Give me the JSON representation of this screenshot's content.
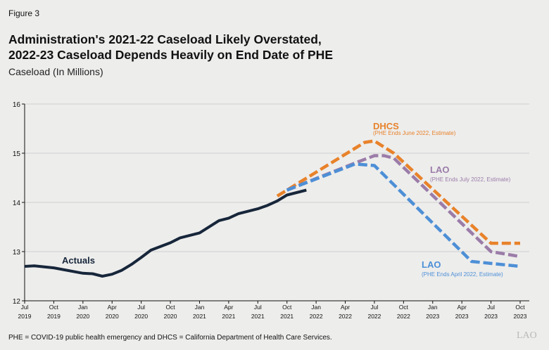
{
  "figure_label": "Figure 3",
  "title_line1": "Administration's 2021-22 Caseload Likely Overstated,",
  "title_line2": "2022-23 Caseload Depends Heavily on End Date of PHE",
  "subtitle": "Caseload (In Millions)",
  "footnote": "PHE = COVID-19 public health emergency and DHCS = California Department of Health Care Services.",
  "logo_text": "LAO",
  "chart_data": {
    "type": "line",
    "ylim": [
      12,
      16
    ],
    "yticks": [
      "12",
      "13",
      "14",
      "15",
      "16"
    ],
    "xlim": [
      "2019-07",
      "2023-10"
    ],
    "xticks": [
      [
        "Jul",
        "2019"
      ],
      [
        "Oct",
        "2019"
      ],
      [
        "Jan",
        "2020"
      ],
      [
        "Apr",
        "2020"
      ],
      [
        "Jul",
        "2020"
      ],
      [
        "Oct",
        "2020"
      ],
      [
        "Jan",
        "2021"
      ],
      [
        "Apr",
        "2021"
      ],
      [
        "Jul",
        "2021"
      ],
      [
        "Oct",
        "2021"
      ],
      [
        "Jan",
        "2022"
      ],
      [
        "Apr",
        "2022"
      ],
      [
        "Jul",
        "2022"
      ],
      [
        "Oct",
        "2022"
      ],
      [
        "Jan",
        "2023"
      ],
      [
        "Apr",
        "2023"
      ],
      [
        "Jul",
        "2023"
      ],
      [
        "Oct",
        "2023"
      ]
    ],
    "grid": "horizontal",
    "series": [
      {
        "name": "DHCS",
        "note": "(PHE Ends June 2022, Estimate)",
        "color": "#e8822a",
        "style": "dashed",
        "points": [
          [
            "2021-09",
            14.13
          ],
          [
            "2021-10",
            14.25
          ],
          [
            "2022-06",
            15.22
          ],
          [
            "2022-07",
            15.25
          ],
          [
            "2022-09",
            15.0
          ],
          [
            "2023-07",
            13.17
          ],
          [
            "2023-10",
            13.17
          ]
        ]
      },
      {
        "name": "LAO",
        "note": "(PHE Ends July 2022, Estimate)",
        "color": "#9b7ca8",
        "style": "dashed",
        "points": [
          [
            "2021-10",
            14.25
          ],
          [
            "2022-05",
            14.8
          ],
          [
            "2022-07",
            14.95
          ],
          [
            "2022-08",
            14.95
          ],
          [
            "2022-09",
            14.9
          ],
          [
            "2023-07",
            13.0
          ],
          [
            "2023-10",
            12.9
          ]
        ]
      },
      {
        "name": "LAO",
        "note": "(PHE Ends April 2022, Estimate)",
        "color": "#4d8fd6",
        "style": "dashed",
        "points": [
          [
            "2021-10",
            14.25
          ],
          [
            "2022-05",
            14.78
          ],
          [
            "2022-07",
            14.75
          ],
          [
            "2023-05",
            12.8
          ],
          [
            "2023-10",
            12.7
          ]
        ]
      },
      {
        "name": "Actuals",
        "color": "#17263a",
        "style": "solid",
        "points": [
          [
            "2019-07",
            12.7
          ],
          [
            "2019-08",
            12.71
          ],
          [
            "2019-10",
            12.67
          ],
          [
            "2020-01",
            12.56
          ],
          [
            "2020-02",
            12.55
          ],
          [
            "2020-03",
            12.5
          ],
          [
            "2020-04",
            12.54
          ],
          [
            "2020-05",
            12.62
          ],
          [
            "2020-06",
            12.74
          ],
          [
            "2020-07",
            12.88
          ],
          [
            "2020-08",
            13.03
          ],
          [
            "2020-10",
            13.18
          ],
          [
            "2020-11",
            13.28
          ],
          [
            "2021-01",
            13.38
          ],
          [
            "2021-03",
            13.63
          ],
          [
            "2021-04",
            13.68
          ],
          [
            "2021-05",
            13.77
          ],
          [
            "2021-07",
            13.87
          ],
          [
            "2021-08",
            13.94
          ],
          [
            "2021-09",
            14.03
          ],
          [
            "2021-10",
            14.15
          ],
          [
            "2021-11",
            14.2
          ],
          [
            "2021-12",
            14.25
          ]
        ]
      }
    ]
  }
}
